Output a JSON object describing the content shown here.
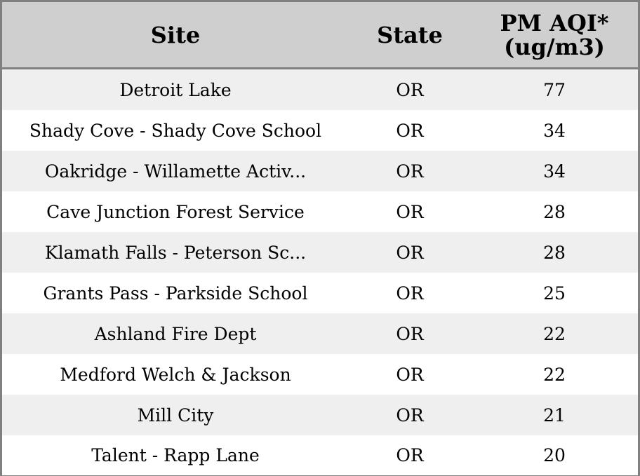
{
  "chart_data": {
    "type": "table",
    "columns": [
      "Site",
      "State",
      "PM AQI*",
      "(ug/m3)"
    ],
    "rows": [
      {
        "site": "Detroit Lake",
        "state": "OR",
        "aqi": "77"
      },
      {
        "site": "Shady Cove - Shady Cove School",
        "state": "OR",
        "aqi": "34"
      },
      {
        "site": "Oakridge - Willamette Activ...",
        "state": "OR",
        "aqi": "34"
      },
      {
        "site": "Cave Junction Forest Service",
        "state": "OR",
        "aqi": "28"
      },
      {
        "site": "Klamath Falls - Peterson Sc...",
        "state": "OR",
        "aqi": "28"
      },
      {
        "site": "Grants Pass - Parkside School",
        "state": "OR",
        "aqi": "25"
      },
      {
        "site": "Ashland Fire Dept",
        "state": "OR",
        "aqi": "22"
      },
      {
        "site": "Medford Welch & Jackson",
        "state": "OR",
        "aqi": "22"
      },
      {
        "site": "Mill City",
        "state": "OR",
        "aqi": "21"
      },
      {
        "site": "Talent - Rapp Lane",
        "state": "OR",
        "aqi": "20"
      }
    ],
    "colors": {
      "header_bg": "#cfcfcf",
      "row_shaded": "#efefef",
      "row_plain": "#ffffff",
      "border": "#808080"
    }
  }
}
